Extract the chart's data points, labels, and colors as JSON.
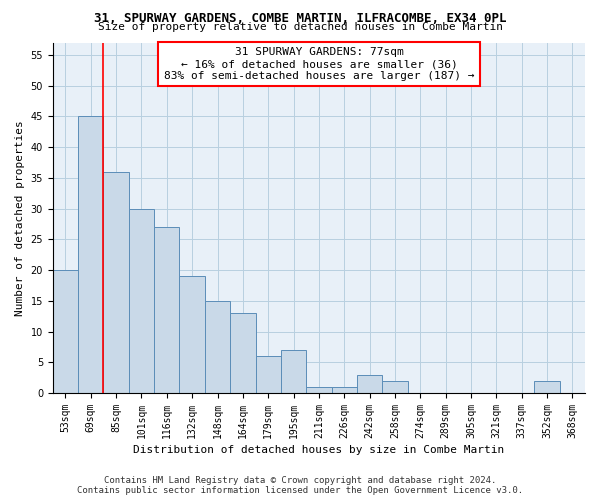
{
  "title": "31, SPURWAY GARDENS, COMBE MARTIN, ILFRACOMBE, EX34 0PL",
  "subtitle": "Size of property relative to detached houses in Combe Martin",
  "xlabel": "Distribution of detached houses by size in Combe Martin",
  "ylabel": "Number of detached properties",
  "footer_line1": "Contains HM Land Registry data © Crown copyright and database right 2024.",
  "footer_line2": "Contains public sector information licensed under the Open Government Licence v3.0.",
  "categories": [
    "53sqm",
    "69sqm",
    "85sqm",
    "101sqm",
    "116sqm",
    "132sqm",
    "148sqm",
    "164sqm",
    "179sqm",
    "195sqm",
    "211sqm",
    "226sqm",
    "242sqm",
    "258sqm",
    "274sqm",
    "289sqm",
    "305sqm",
    "321sqm",
    "337sqm",
    "352sqm",
    "368sqm"
  ],
  "values": [
    20,
    45,
    36,
    30,
    27,
    19,
    15,
    13,
    6,
    7,
    1,
    1,
    3,
    2,
    0,
    0,
    0,
    0,
    0,
    2,
    0
  ],
  "bar_color": "#c9d9e8",
  "bar_edge_color": "#5b8db8",
  "red_line_x": 1.5,
  "red_line_color": "red",
  "annotation_text": "31 SPURWAY GARDENS: 77sqm\n← 16% of detached houses are smaller (36)\n83% of semi-detached houses are larger (187) →",
  "annotation_box_color": "white",
  "annotation_box_edge": "red",
  "ylim": [
    0,
    57
  ],
  "yticks": [
    0,
    5,
    10,
    15,
    20,
    25,
    30,
    35,
    40,
    45,
    50,
    55
  ],
  "grid_color": "#b8cfe0",
  "bg_color": "#e8f0f8",
  "title_fontsize": 9,
  "subtitle_fontsize": 8,
  "axis_label_fontsize": 8,
  "tick_fontsize": 7,
  "annotation_fontsize": 8,
  "footer_fontsize": 6.5
}
